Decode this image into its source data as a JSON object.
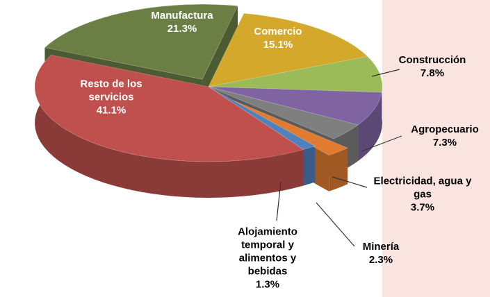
{
  "chart_data": {
    "type": "pie",
    "categories": [
      "Manufactura",
      "Comercio",
      "Construcción",
      "Agropecuario",
      "Electricidad, agua y gas",
      "Minería",
      "Alojamiento temporal y alimentos y bebidas",
      "Resto de los servicios"
    ],
    "values": [
      21.3,
      15.1,
      7.8,
      7.3,
      3.7,
      2.3,
      1.3,
      41.1
    ],
    "value_labels": [
      "21.3%",
      "15.1%",
      "7.8%",
      "7.3%",
      "3.7%",
      "2.3%",
      "1.3%",
      "41.1%"
    ],
    "colors": [
      "#6b7f45",
      "#d4a82a",
      "#9bbb59",
      "#8064a2",
      "#7f7f7f",
      "#e07b30",
      "#4f81bd",
      "#c0504d"
    ]
  }
}
